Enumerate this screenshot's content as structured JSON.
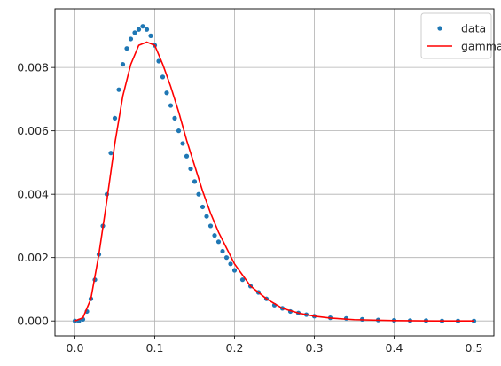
{
  "chart_data": {
    "type": "scatter",
    "title": "",
    "xlabel": "",
    "ylabel": "",
    "xlim": [
      -0.025,
      0.525
    ],
    "ylim": [
      -0.00047,
      0.00985
    ],
    "xticks": [
      0.0,
      0.1,
      0.2,
      0.3,
      0.4,
      0.5
    ],
    "xtick_labels": [
      "0.0",
      "0.1",
      "0.2",
      "0.3",
      "0.4",
      "0.5"
    ],
    "yticks": [
      0.0,
      0.002,
      0.004,
      0.006,
      0.008
    ],
    "ytick_labels": [
      "0.000",
      "0.002",
      "0.004",
      "0.006",
      "0.008"
    ],
    "grid": true,
    "legend_position": "top-right",
    "series": [
      {
        "name": "data",
        "kind": "points",
        "color": "#1f77b4",
        "x": [
          0.0,
          0.005,
          0.01,
          0.015,
          0.02,
          0.025,
          0.03,
          0.035,
          0.04,
          0.045,
          0.05,
          0.055,
          0.06,
          0.065,
          0.07,
          0.075,
          0.08,
          0.085,
          0.09,
          0.095,
          0.1,
          0.105,
          0.11,
          0.115,
          0.12,
          0.125,
          0.13,
          0.135,
          0.14,
          0.145,
          0.15,
          0.155,
          0.16,
          0.165,
          0.17,
          0.175,
          0.18,
          0.185,
          0.19,
          0.195,
          0.2,
          0.21,
          0.22,
          0.23,
          0.24,
          0.25,
          0.26,
          0.27,
          0.28,
          0.29,
          0.3,
          0.32,
          0.34,
          0.36,
          0.38,
          0.4,
          0.42,
          0.44,
          0.46,
          0.48,
          0.5
        ],
        "y": [
          0.0,
          0.0,
          5e-05,
          0.0003,
          0.0007,
          0.0013,
          0.0021,
          0.003,
          0.004,
          0.0053,
          0.0064,
          0.0073,
          0.0081,
          0.0086,
          0.0089,
          0.0091,
          0.0092,
          0.0093,
          0.0092,
          0.009,
          0.0087,
          0.0082,
          0.0077,
          0.0072,
          0.0068,
          0.0064,
          0.006,
          0.0056,
          0.0052,
          0.0048,
          0.0044,
          0.004,
          0.0036,
          0.0033,
          0.003,
          0.0027,
          0.0025,
          0.0022,
          0.002,
          0.0018,
          0.0016,
          0.0013,
          0.0011,
          0.0009,
          0.0007,
          0.0005,
          0.0004,
          0.0003,
          0.00025,
          0.0002,
          0.00015,
          0.0001,
          8e-05,
          5e-05,
          3e-05,
          2e-05,
          1e-05,
          1e-05,
          0.0,
          0.0,
          0.0
        ]
      },
      {
        "name": "gamma",
        "kind": "line",
        "color": "#ff0000",
        "x": [
          0.0,
          0.01,
          0.02,
          0.03,
          0.04,
          0.05,
          0.06,
          0.07,
          0.08,
          0.09,
          0.1,
          0.11,
          0.12,
          0.13,
          0.14,
          0.15,
          0.16,
          0.17,
          0.18,
          0.19,
          0.2,
          0.22,
          0.24,
          0.26,
          0.28,
          0.3,
          0.32,
          0.35,
          0.4,
          0.45,
          0.5
        ],
        "y": [
          0.0,
          0.0001,
          0.0007,
          0.0021,
          0.0038,
          0.0056,
          0.0071,
          0.0081,
          0.0087,
          0.0088,
          0.0087,
          0.0081,
          0.0074,
          0.0066,
          0.0057,
          0.0049,
          0.0041,
          0.0034,
          0.0028,
          0.0023,
          0.0018,
          0.0011,
          0.0007,
          0.0004,
          0.00025,
          0.00015,
          9e-05,
          4e-05,
          1e-05,
          0.0,
          0.0
        ]
      }
    ]
  }
}
